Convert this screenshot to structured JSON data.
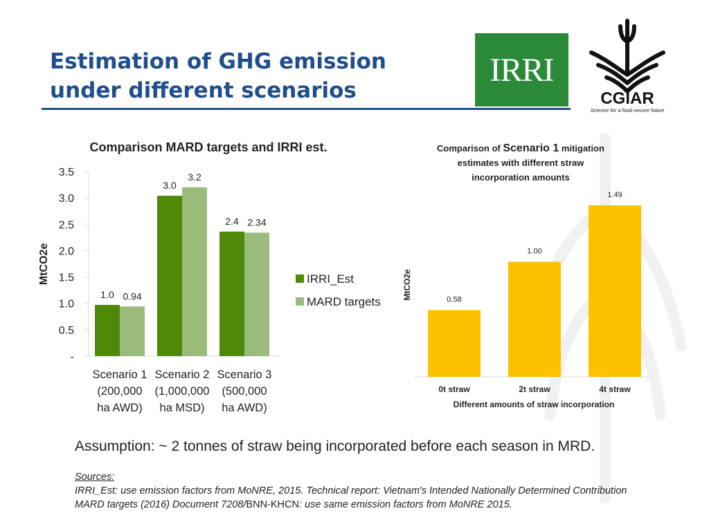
{
  "slide": {
    "title_line1": "Estimation of GHG emission",
    "title_line2": "under different scenarios",
    "assumption": "Assumption: ~ 2 tonnes of straw being incorporated before each season in MRD.",
    "sources_heading": "Sources:",
    "source_1": "IRRI_Est: use emission factors from MoNRE, 2015. Technical report: Vietnam's Intended Nationally Determined Contribution",
    "source_2_prefix": "MARD targets (2016) Document 7208/",
    "source_2_doc": "BNN-KHCN",
    "source_2_suffix": ": use same emission factors from MoNRE 2015."
  },
  "logos": {
    "irri": "IRRI",
    "cgiar": "CGIAR",
    "cgiar_tagline": "Science for a food-secure future"
  },
  "colors": {
    "title": "#1f4e8c",
    "irri_est": "#4e8a08",
    "mard": "#9bbb7c",
    "straw": "#fcc200",
    "irri_logo_bg": "#2a8a3a"
  },
  "chart_data": [
    {
      "type": "bar",
      "title": "Comparison MARD targets and IRRI est.",
      "ylabel": "MtCO2e",
      "xlabel": "",
      "ylim": [
        0,
        3.5
      ],
      "yticks": [
        "-",
        "0.5",
        "1.0",
        "1.5",
        "2.0",
        "2.5",
        "3.0",
        "3.5"
      ],
      "categories": [
        [
          "Scenario 1",
          "(200,000",
          "ha AWD)"
        ],
        [
          "Scenario 2",
          "(1,000,000",
          "ha MSD)"
        ],
        [
          "Scenario 3",
          "(500,000",
          "ha AWD)"
        ]
      ],
      "series": [
        {
          "name": "IRRI_Est",
          "values": [
            0.97,
            3.04,
            2.36
          ],
          "labels": [
            "1.0",
            "3.0",
            "2.4"
          ]
        },
        {
          "name": "MARD targets",
          "values": [
            0.94,
            3.2,
            2.34
          ],
          "labels": [
            "0.94",
            "3.2",
            "2.34"
          ]
        }
      ],
      "legend": "right"
    },
    {
      "type": "bar",
      "title_pre": "Comparison of ",
      "title_emph": "Scenario 1",
      "title_post": " mitigation",
      "title_line2": "estimates with different straw",
      "title_line3": "incorporation amounts",
      "ylabel": "MtCO2e",
      "xlabel": "Different amounts of straw incorporation",
      "categories": [
        "0t straw",
        "2t straw",
        "4t straw"
      ],
      "values": [
        0.58,
        1.0,
        1.49
      ],
      "labels": [
        "0.58",
        "1.00",
        "1.49"
      ],
      "ylim": [
        0,
        1.49
      ]
    }
  ]
}
